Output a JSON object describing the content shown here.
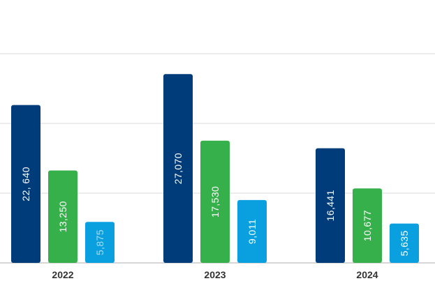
{
  "chart_data": {
    "type": "bar",
    "categories": [
      "2022",
      "2023",
      "2024"
    ],
    "series": [
      {
        "values": [
          22640,
          27070,
          16441
        ],
        "labels": [
          "22, 640",
          "27,070",
          "16,441"
        ],
        "color": "#003b7a",
        "label_color": "#ffffff"
      },
      {
        "values": [
          13250,
          17530,
          10677
        ],
        "labels": [
          "13,250",
          "17,530",
          "10,677"
        ],
        "color": "#36b04a",
        "label_color": "#ffffff"
      },
      {
        "values": [
          5875,
          9011,
          5635
        ],
        "labels": [
          "5,875",
          "9,011",
          "5,635"
        ],
        "color": "#0aa0e0",
        "label_color_overrides": [
          "#a9dbf5",
          "#ffffff",
          "#ffffff"
        ]
      }
    ],
    "ylim": [
      0,
      30000
    ],
    "gridlines": [
      10000,
      20000,
      30000
    ],
    "grid": true,
    "gridline_color": "#d9d9d9",
    "baseline_color": "#c8c8c8",
    "tick_label_color": "#333333"
  }
}
